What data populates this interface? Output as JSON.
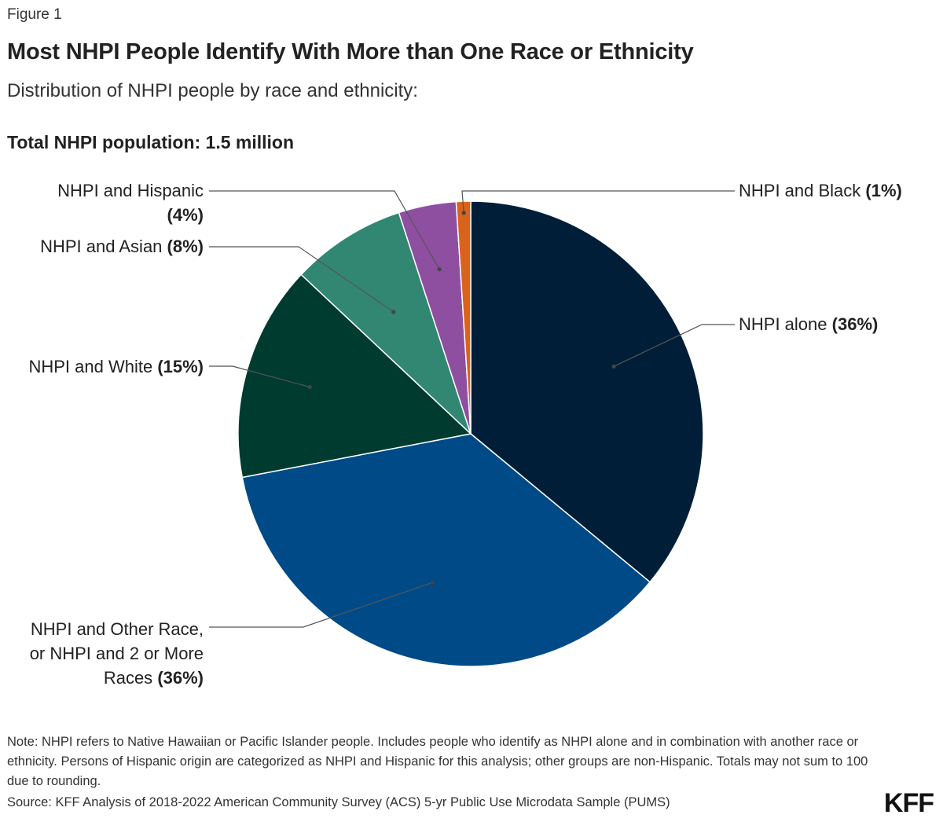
{
  "figure_label": "Figure 1",
  "title": "Most NHPI People Identify With More than One Race or Ethnicity",
  "subtitle": "Distribution of NHPI people by race and ethnicity:",
  "total_label": "Total NHPI population: 1.5 million",
  "note": "Note: NHPI refers to Native Hawaiian or Pacific Islander people. Includes people who identify as NHPI alone and in combination with another race or ethnicity. Persons of Hispanic origin are categorized as NHPI and Hispanic for this analysis; other groups are non-Hispanic. Totals may not sum to 100 due to rounding.",
  "source": "Source: KFF Analysis of 2018-2022 American Community Survey (ACS) 5-yr Public Use Microdata Sample (PUMS)",
  "logo": "KFF",
  "chart_data": {
    "type": "pie",
    "title": "Most NHPI People Identify With More than One Race or Ethnicity",
    "slices": [
      {
        "name": "NHPI alone",
        "value": 36,
        "value_label": "(36%)",
        "color": "#001e37"
      },
      {
        "name": "NHPI and Other Race, or NHPI and 2 or More Races",
        "value": 36,
        "value_label": "(36%)",
        "color": "#004a87"
      },
      {
        "name": "NHPI and White",
        "value": 15,
        "value_label": "(15%)",
        "color": "#003b2f"
      },
      {
        "name": "NHPI and Asian",
        "value": 8,
        "value_label": "(8%)",
        "color": "#328772"
      },
      {
        "name": "NHPI and Hispanic",
        "value": 4,
        "value_label": "(4%)",
        "color": "#8e4fa1"
      },
      {
        "name": "NHPI and Black",
        "value": 1,
        "value_label": "(1%)",
        "color": "#d9631c"
      }
    ],
    "label_lines": [
      [
        "NHPI alone"
      ],
      [
        "NHPI and Other Race,",
        "or NHPI and 2 or More",
        "Races"
      ],
      [
        "NHPI and White"
      ],
      [
        "NHPI and Asian"
      ],
      [
        "NHPI and Hispanic",
        ""
      ],
      [
        "NHPI and Black"
      ]
    ]
  }
}
